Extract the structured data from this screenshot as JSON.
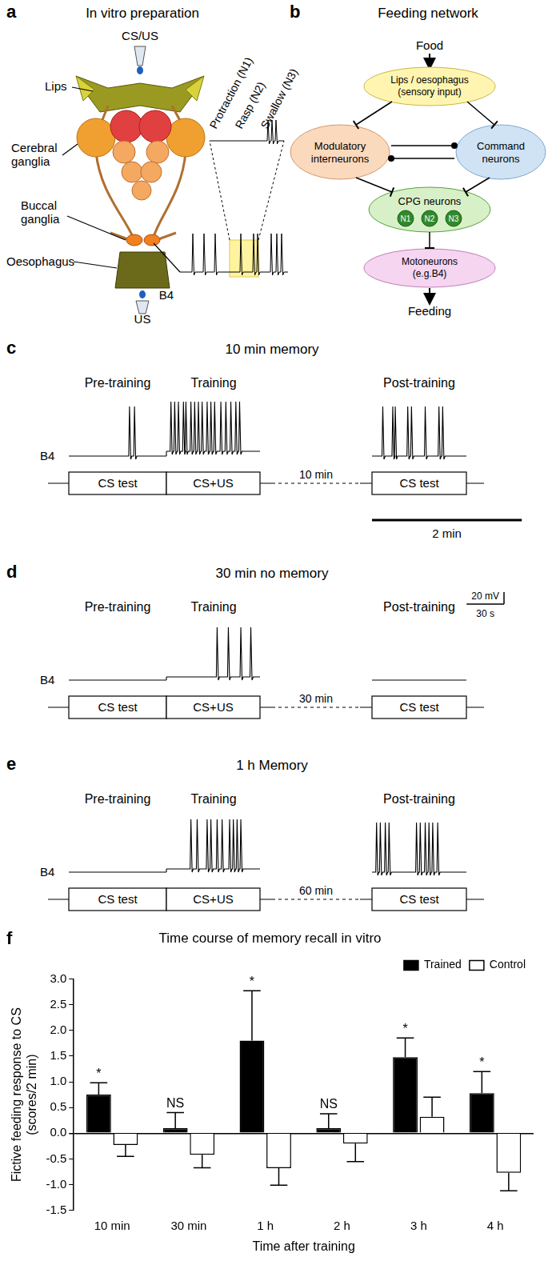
{
  "panels": {
    "a": {
      "label": "a",
      "title": "In vitro preparation",
      "stimulus_top": "CS/US",
      "stimulus_bottom": "US",
      "lips": "Lips",
      "cerebral": [
        "Cerebral",
        "ganglia"
      ],
      "buccal": [
        "Buccal",
        "ganglia"
      ],
      "oesophagus": "Oesophagus",
      "trace": "B4",
      "phases": [
        "Protraction (N1)",
        "Rasp (N2)",
        "Swallow (N3)"
      ]
    },
    "b": {
      "label": "b",
      "title": "Feeding network",
      "input": "Food",
      "output": "Feeding",
      "sensory": [
        "Lips / oesophagus",
        "(sensory input)"
      ],
      "modulatory": [
        "Modulatory",
        "interneurons"
      ],
      "command": [
        "Command",
        "neurons"
      ],
      "cpg": "CPG neurons",
      "cpg_cells": [
        "N1",
        "N2",
        "N3"
      ],
      "motor": [
        "Motoneurons",
        "(e.g.B4)"
      ]
    },
    "c": {
      "label": "c",
      "title": "10 min memory",
      "phases": [
        "Pre-training",
        "Training",
        "Post-training"
      ],
      "trace": "B4",
      "boxes": [
        "CS test",
        "CS+US",
        "CS test"
      ],
      "delay": "10 min",
      "spikes_s": {
        "pre": [
          48,
          52
        ],
        "training": [
          3,
          6,
          9,
          13,
          15,
          19,
          22,
          25,
          28,
          32,
          35,
          38,
          43,
          47,
          51,
          55,
          58
        ],
        "post": [
          8,
          16,
          18,
          28,
          31,
          42,
          53,
          56
        ]
      },
      "scale_time": {
        "value": 120,
        "label": "2 min"
      }
    },
    "d": {
      "label": "d",
      "title": "30 min no memory",
      "phases": [
        "Pre-training",
        "Training",
        "Post-training"
      ],
      "trace": "B4",
      "boxes": [
        "CS test",
        "CS+US",
        "CS test"
      ],
      "delay": "30 min",
      "spikes_s": {
        "pre": [],
        "training": [
          40,
          49,
          59,
          67
        ],
        "post": []
      },
      "scale_voltage": {
        "value": 20,
        "label": "20 mV"
      },
      "scale_time": {
        "value": 30,
        "label": "30 s"
      }
    },
    "e": {
      "label": "e",
      "title": "1 h Memory",
      "phases": [
        "Pre-training",
        "Training",
        "Post-training"
      ],
      "trace": "B4",
      "boxes": [
        "CS test",
        "CS+US",
        "CS test"
      ],
      "delay": "60 min",
      "spikes_s": {
        "pre": [],
        "training": [
          19,
          24,
          32,
          35,
          40,
          44,
          50,
          53,
          56,
          59
        ],
        "post": [
          3,
          6,
          10,
          13,
          35,
          38,
          42,
          45,
          48,
          52
        ]
      }
    }
  },
  "chart_data": {
    "label": "f",
    "type": "bar",
    "title": "Time course of memory recall in vitro",
    "x_label": "Time after training",
    "y_label": [
      "Fictive feeding response to CS",
      "(scores/2 min)"
    ],
    "categories": [
      "10 min",
      "30 min",
      "1 h",
      "2 h",
      "3 h",
      "4 h"
    ],
    "series": [
      {
        "name": "Trained",
        "color": "#000000",
        "values": [
          0.75,
          0.1,
          1.8,
          0.1,
          1.48,
          0.78
        ],
        "errors": [
          0.23,
          0.3,
          0.97,
          0.28,
          0.37,
          0.42
        ],
        "annotations": [
          "*",
          "NS",
          "*",
          "NS",
          "*",
          "*"
        ]
      },
      {
        "name": "Control",
        "color": "#ffffff",
        "values": [
          -0.23,
          -0.42,
          -0.68,
          -0.2,
          0.32,
          -0.77
        ],
        "errors": [
          0.22,
          0.25,
          0.33,
          0.35,
          0.38,
          0.35
        ]
      }
    ],
    "ylim": [
      -1.5,
      3.0
    ],
    "yticks": [
      -1.5,
      {
        "value": -1,
        "label": "-1.0"
      },
      -0.5,
      {
        "value": 0,
        "label": "0.0"
      },
      0.5,
      {
        "value": 1,
        "label": "1.0"
      },
      1.5,
      {
        "value": 2,
        "label": "2.0"
      },
      2.5,
      {
        "value": 3,
        "label": "3.0"
      }
    ],
    "grid": false,
    "legend": "top-right"
  }
}
